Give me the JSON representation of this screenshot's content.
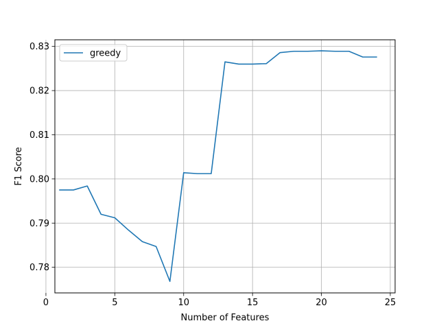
{
  "chart_data": {
    "type": "line",
    "title": "",
    "xlabel": "Number of Features",
    "ylabel": "F1 Score",
    "xlim": [
      0.65,
      25.35
    ],
    "ylim": [
      0.7742,
      0.8315
    ],
    "xticks": [
      0,
      5,
      10,
      15,
      20,
      25
    ],
    "yticks": [
      0.78,
      0.79,
      0.8,
      0.81,
      0.82,
      0.83
    ],
    "xtick_labels": [
      "0",
      "5",
      "10",
      "15",
      "20",
      "25"
    ],
    "ytick_labels": [
      "0.78",
      "0.79",
      "0.80",
      "0.81",
      "0.82",
      "0.83"
    ],
    "grid": true,
    "legend_position": "top-left",
    "series": [
      {
        "name": "greedy",
        "color": "#1f77b4",
        "x": [
          1,
          2,
          3,
          4,
          5,
          6,
          7,
          8,
          9,
          10,
          11,
          12,
          13,
          14,
          15,
          16,
          17,
          18,
          19,
          20,
          21,
          22,
          23,
          24
        ],
        "y": [
          0.7975,
          0.7975,
          0.7984,
          0.792,
          0.7912,
          0.7884,
          0.7858,
          0.7847,
          0.7768,
          0.8014,
          0.8012,
          0.8012,
          0.8265,
          0.826,
          0.826,
          0.8261,
          0.8286,
          0.8289,
          0.8289,
          0.829,
          0.8289,
          0.8289,
          0.8276,
          0.8276
        ]
      }
    ]
  }
}
